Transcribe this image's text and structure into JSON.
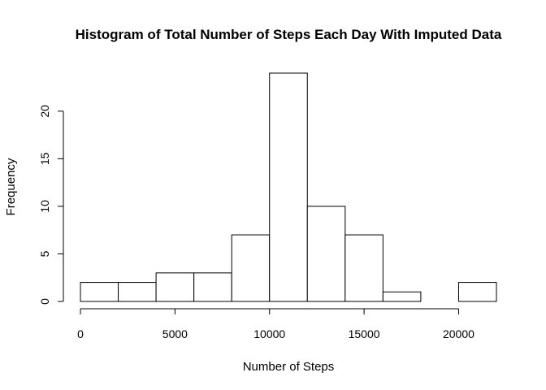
{
  "chart_data": {
    "type": "bar",
    "title": "Histogram of Total Number of Steps Each Day With Imputed Data",
    "xlabel": "Number of Steps",
    "ylabel": "Frequency",
    "bins": [
      {
        "start": 0,
        "end": 2000,
        "count": 2
      },
      {
        "start": 2000,
        "end": 4000,
        "count": 2
      },
      {
        "start": 4000,
        "end": 6000,
        "count": 3
      },
      {
        "start": 6000,
        "end": 8000,
        "count": 3
      },
      {
        "start": 8000,
        "end": 10000,
        "count": 7
      },
      {
        "start": 10000,
        "end": 12000,
        "count": 24
      },
      {
        "start": 12000,
        "end": 14000,
        "count": 10
      },
      {
        "start": 14000,
        "end": 16000,
        "count": 7
      },
      {
        "start": 16000,
        "end": 18000,
        "count": 1
      },
      {
        "start": 18000,
        "end": 20000,
        "count": 0
      },
      {
        "start": 20000,
        "end": 22000,
        "count": 2
      }
    ],
    "x_ticks": [
      "0",
      "5000",
      "10000",
      "15000",
      "20000"
    ],
    "y_ticks": [
      "0",
      "5",
      "10",
      "15",
      "20"
    ],
    "xlim": [
      0,
      22000
    ],
    "ylim": [
      0,
      24
    ],
    "grid": false,
    "legend": "none"
  }
}
